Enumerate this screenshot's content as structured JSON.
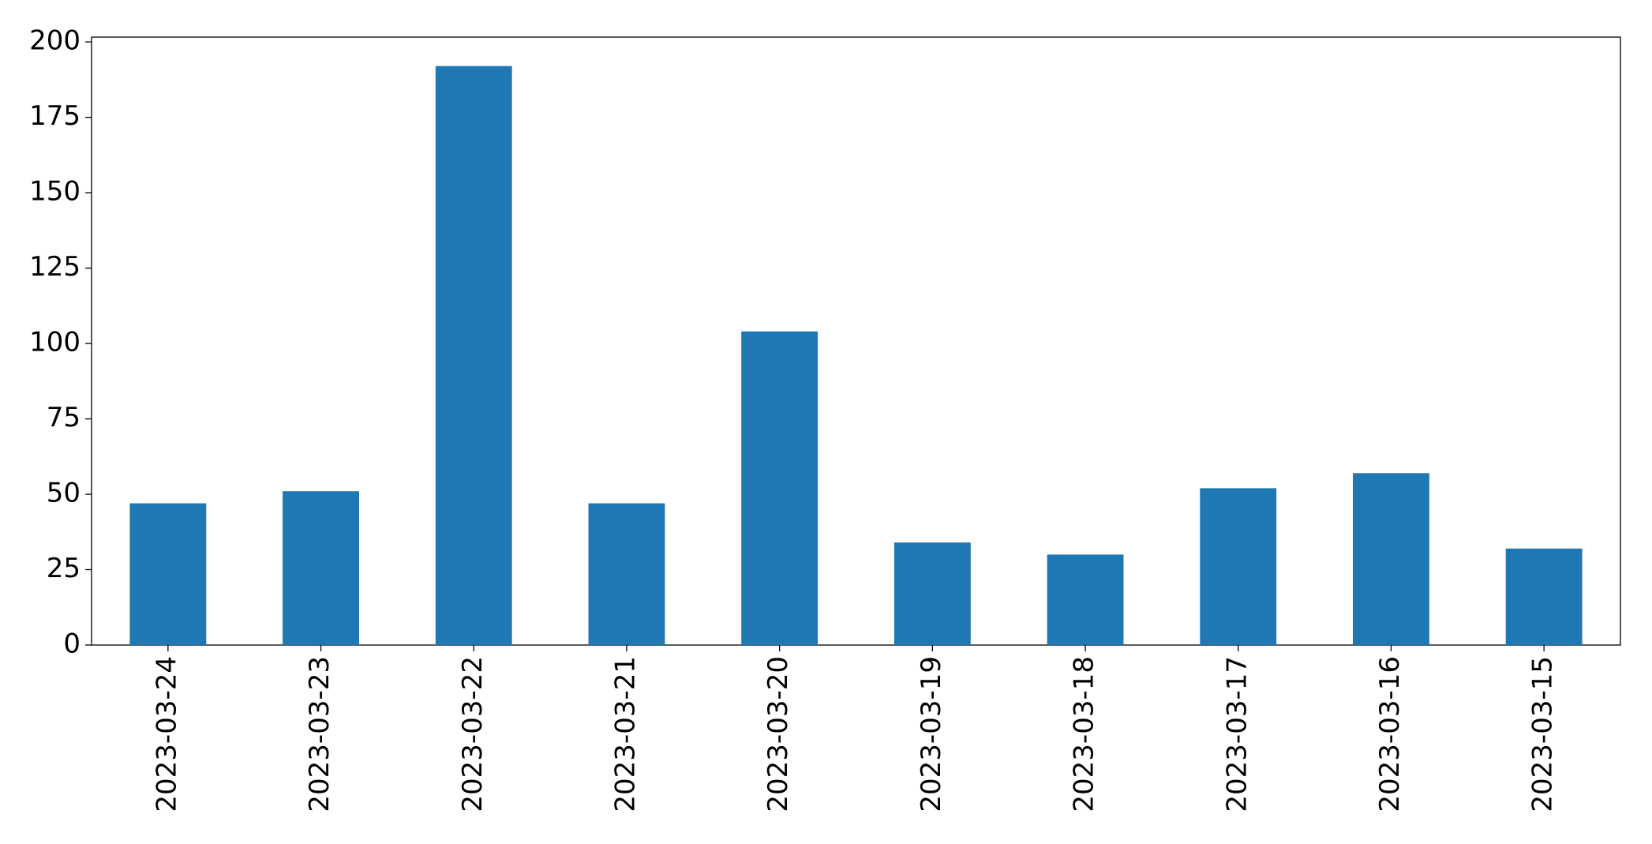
{
  "chart_data": {
    "type": "bar",
    "categories": [
      "2023-03-24",
      "2023-03-23",
      "2023-03-22",
      "2023-03-21",
      "2023-03-20",
      "2023-03-19",
      "2023-03-18",
      "2023-03-17",
      "2023-03-16",
      "2023-03-15"
    ],
    "values": [
      47,
      51,
      192,
      47,
      104,
      34,
      30,
      52,
      57,
      32
    ],
    "color": "#1f77b4",
    "ylim": [
      0,
      201.6
    ],
    "yticks": [
      0,
      25,
      50,
      75,
      100,
      125,
      150,
      175,
      200
    ],
    "grid": false
  }
}
